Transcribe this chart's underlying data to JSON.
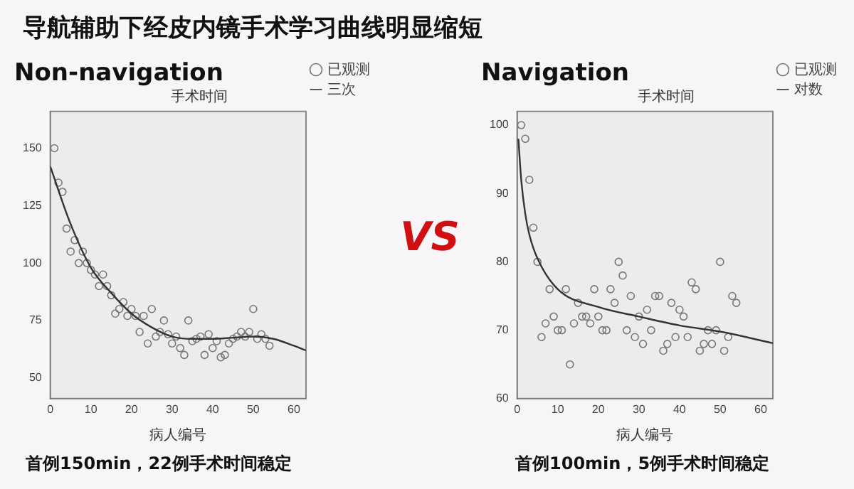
{
  "chart_data": [
    {
      "type": "scatter",
      "title": "Non-navigation",
      "subtitle": "手术时间",
      "xlabel": "病人编号",
      "annotations": [
        "导航辅助下经皮内镜手术学习曲线明显缩短",
        "VS",
        "首例150min，22例手术时间稳定"
      ],
      "xlim": [
        0,
        63
      ],
      "xticks": [
        0,
        10,
        20,
        30,
        40,
        50,
        60
      ],
      "ylim": [
        41,
        166
      ],
      "yticks": [
        50,
        75,
        100,
        125,
        150
      ],
      "grid": false,
      "legend": "top right",
      "marker": "circle",
      "series": [
        {
          "name": "已观测",
          "color": "#777777",
          "x": [
            1,
            2,
            3,
            4,
            5,
            6,
            7,
            8,
            9,
            10,
            11,
            12,
            13,
            14,
            15,
            16,
            17,
            18,
            19,
            20,
            21,
            22,
            23,
            24,
            25,
            26,
            27,
            28,
            29,
            30,
            31,
            32,
            33,
            34,
            35,
            36,
            37,
            38,
            39,
            40,
            41,
            42,
            43,
            44,
            45,
            46,
            47,
            48,
            49,
            50,
            51,
            52,
            53,
            54
          ],
          "values": [
            150,
            135,
            131,
            115,
            105,
            110,
            100,
            105,
            100,
            97,
            95,
            90,
            95,
            90,
            86,
            78,
            80,
            83,
            77,
            80,
            77,
            70,
            77,
            65,
            80,
            68,
            70,
            75,
            69,
            65,
            68,
            63,
            60,
            75,
            66,
            67,
            68,
            60,
            69,
            63,
            66,
            59,
            60,
            65,
            67,
            68,
            70,
            68,
            70,
            80,
            67,
            69,
            67,
            64
          ]
        },
        {
          "name": "三次",
          "type": "line",
          "marker": "none",
          "color": "#333333",
          "x": [
            0,
            5,
            10,
            15,
            20,
            25,
            30,
            35,
            40,
            45,
            50,
            55,
            60,
            63
          ],
          "values": [
            142,
            117,
            98,
            87,
            78,
            72,
            68,
            67,
            67,
            67.5,
            68,
            67,
            64,
            62
          ]
        }
      ]
    },
    {
      "type": "scatter",
      "title": "Navigation",
      "subtitle": "手术时间",
      "xlabel": "病人编号",
      "annotations": [
        "首例100min，5例手术时间稳定"
      ],
      "xlim": [
        0,
        63
      ],
      "xticks": [
        0,
        10,
        20,
        30,
        40,
        50,
        60
      ],
      "ylim": [
        60,
        102
      ],
      "yticks": [
        60,
        70,
        80,
        90,
        100
      ],
      "grid": false,
      "legend": "top right",
      "marker": "circle",
      "series": [
        {
          "name": "已观测",
          "color": "#777777",
          "x": [
            1,
            2,
            3,
            4,
            5,
            6,
            7,
            8,
            9,
            10,
            11,
            12,
            13,
            14,
            15,
            16,
            17,
            18,
            19,
            20,
            21,
            22,
            23,
            24,
            25,
            26,
            27,
            28,
            29,
            30,
            31,
            32,
            33,
            34,
            35,
            36,
            37,
            38,
            39,
            40,
            41,
            42,
            43,
            44,
            45,
            46,
            47,
            48,
            49,
            50,
            51,
            52,
            53,
            54
          ],
          "values": [
            100,
            98,
            92,
            85,
            80,
            69,
            71,
            76,
            72,
            70,
            70,
            76,
            65,
            71,
            74,
            72,
            72,
            71,
            76,
            72,
            70,
            70,
            76,
            74,
            80,
            78,
            70,
            75,
            69,
            72,
            68,
            73,
            70,
            75,
            75,
            67,
            68,
            74,
            69,
            73,
            72,
            69,
            77,
            76,
            67,
            68,
            70,
            68,
            70,
            80,
            67,
            69,
            75,
            74
          ]
        },
        {
          "name": "对数",
          "type": "line",
          "marker": "none",
          "color": "#333333",
          "x": [
            0.3,
            1,
            2,
            3,
            5,
            10,
            20,
            30,
            40,
            50,
            63
          ],
          "values": [
            98,
            92,
            87,
            84,
            80.5,
            76,
            73.4,
            72,
            70.7,
            69.8,
            68.1
          ]
        }
      ]
    }
  ]
}
